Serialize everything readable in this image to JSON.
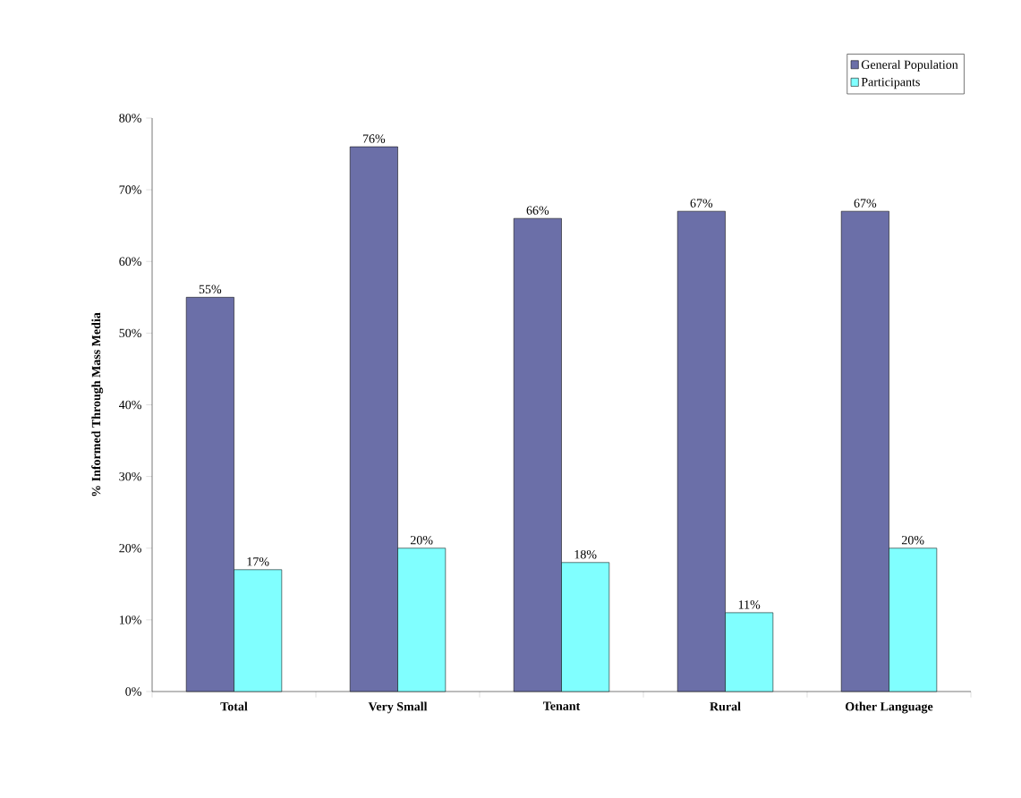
{
  "chart_data": {
    "type": "bar",
    "ylabel": "% Informed Through Mass Media",
    "categories": [
      "Total",
      "Very Small",
      "Tenant",
      "Rural",
      "Other Language"
    ],
    "series": [
      {
        "name": "General Population",
        "color": "#6b6fa8",
        "values": [
          55,
          76,
          66,
          67,
          67
        ],
        "value_labels": [
          "55%",
          "76%",
          "66%",
          "67%",
          "67%"
        ]
      },
      {
        "name": "Participants",
        "color": "#80ffff",
        "values": [
          17,
          20,
          18,
          11,
          20
        ],
        "value_labels": [
          "17%",
          "20%",
          "18%",
          "11%",
          "20%"
        ]
      }
    ],
    "ylim": [
      0,
      80
    ],
    "yticks": [
      {
        "value": 0,
        "label": "0%"
      },
      {
        "value": 10,
        "label": "10%"
      },
      {
        "value": 20,
        "label": "20%"
      },
      {
        "value": 30,
        "label": "30%"
      },
      {
        "value": 40,
        "label": "40%"
      },
      {
        "value": 50,
        "label": "50%"
      },
      {
        "value": 60,
        "label": "60%"
      },
      {
        "value": 70,
        "label": "70%"
      },
      {
        "value": 80,
        "label": "80%"
      }
    ],
    "legend": "top right",
    "grid": false
  }
}
